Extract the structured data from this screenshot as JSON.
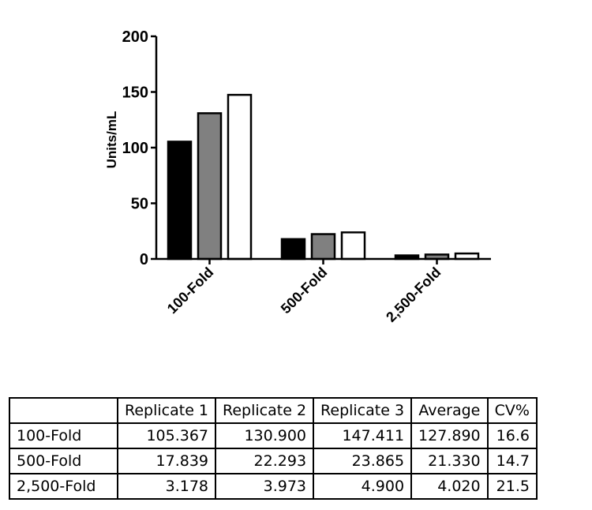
{
  "chart_data": {
    "type": "bar",
    "title": "",
    "xlabel": "",
    "ylabel": "Units/mL",
    "ylim": [
      0,
      200
    ],
    "yticks": [
      0,
      50,
      100,
      150,
      200
    ],
    "categories": [
      "100-Fold",
      "500-Fold",
      "2,500-Fold"
    ],
    "series": [
      {
        "values": [
          105.367,
          17.839,
          3.178
        ],
        "color": "#000000"
      },
      {
        "values": [
          130.9,
          22.293,
          3.973
        ],
        "color": "#808080"
      },
      {
        "values": [
          147.411,
          23.865,
          4.9
        ],
        "color": "#ffffff"
      }
    ],
    "legend": "none",
    "grid": false
  },
  "table": {
    "headers": [
      "",
      "Replicate 1",
      "Replicate 2",
      "Replicate 3",
      "Average",
      "CV%"
    ],
    "rows": [
      [
        "100-Fold",
        "105.367",
        "130.900",
        "147.411",
        "127.890",
        "16.6"
      ],
      [
        "500-Fold",
        "17.839",
        "22.293",
        "23.865",
        "21.330",
        "14.7"
      ],
      [
        "2,500-Fold",
        "3.178",
        "3.973",
        "4.900",
        "4.020",
        "21.5"
      ]
    ]
  }
}
